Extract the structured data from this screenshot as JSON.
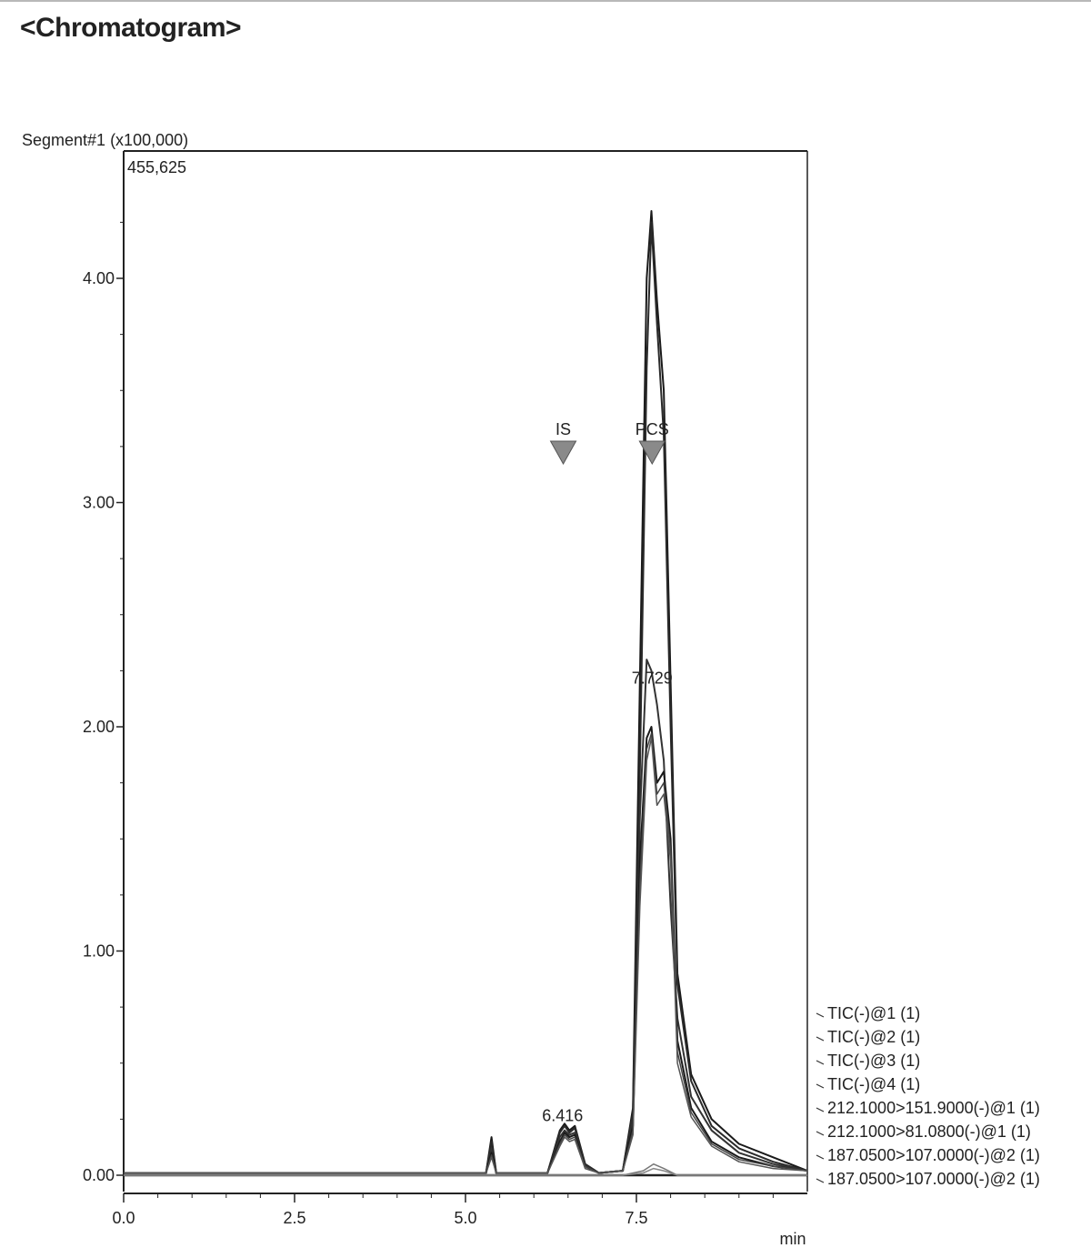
{
  "page_title": "<Chromatogram>",
  "chart_data": {
    "type": "line",
    "title": "<Chromatogram>",
    "y_axis_title": "Segment#1 (x100,000)",
    "y_max_label": "455,625",
    "xlabel": "min",
    "ylabel": "",
    "xlim": [
      0.0,
      10.0
    ],
    "ylim": [
      0.0,
      4.5
    ],
    "x_ticks": [
      {
        "value": 0.0,
        "label": "0.0"
      },
      {
        "value": 2.5,
        "label": "2.5"
      },
      {
        "value": 5.0,
        "label": "5.0"
      },
      {
        "value": 7.5,
        "label": "7.5"
      }
    ],
    "y_ticks": [
      {
        "value": 0.0,
        "label": "0.00"
      },
      {
        "value": 1.0,
        "label": "1.00"
      },
      {
        "value": 2.0,
        "label": "2.00"
      },
      {
        "value": 3.0,
        "label": "3.00"
      },
      {
        "value": 4.0,
        "label": "4.00"
      }
    ],
    "peak_markers": [
      {
        "label": "IS",
        "x": 6.43
      },
      {
        "label": "PCS",
        "x": 7.73
      }
    ],
    "peak_labels": [
      {
        "label": "6.416",
        "x": 6.42,
        "y": 0.25
      },
      {
        "label": "7.729",
        "x": 7.73,
        "y": 2.2
      }
    ],
    "legend_position": "right",
    "series": [
      {
        "name": "TIC(-)@1 (1)",
        "x": [
          0,
          4.8,
          5.3,
          5.38,
          5.45,
          6.2,
          6.38,
          6.45,
          6.52,
          6.6,
          6.75,
          6.95,
          7.3,
          7.45,
          7.55,
          7.65,
          7.72,
          7.8,
          7.9,
          8.0,
          8.1,
          8.3,
          8.6,
          9.0,
          9.5,
          10.0
        ],
        "y": [
          0.01,
          0.01,
          0.01,
          0.17,
          0.01,
          0.01,
          0.2,
          0.23,
          0.2,
          0.22,
          0.05,
          0.01,
          0.02,
          0.3,
          2.2,
          4.0,
          4.3,
          3.9,
          3.5,
          2.2,
          0.9,
          0.45,
          0.25,
          0.14,
          0.08,
          0.02
        ]
      },
      {
        "name": "TIC(-)@2 (1)",
        "x": [
          0,
          4.8,
          5.3,
          5.38,
          5.45,
          6.2,
          6.38,
          6.45,
          6.52,
          6.6,
          6.75,
          6.95,
          7.3,
          7.45,
          7.55,
          7.65,
          7.72,
          7.8,
          7.9,
          8.0,
          8.1,
          8.3,
          8.6,
          9.0,
          9.5,
          10.0
        ],
        "y": [
          0.01,
          0.01,
          0.01,
          0.15,
          0.01,
          0.01,
          0.19,
          0.22,
          0.19,
          0.21,
          0.05,
          0.01,
          0.02,
          0.28,
          1.8,
          3.6,
          4.25,
          3.8,
          3.3,
          2.0,
          0.85,
          0.42,
          0.22,
          0.12,
          0.06,
          0.02
        ]
      },
      {
        "name": "TIC(-)@3 (1)",
        "x": [
          0,
          4.8,
          5.3,
          5.38,
          5.45,
          6.2,
          6.38,
          6.45,
          6.52,
          6.6,
          6.75,
          6.95,
          7.3,
          7.45,
          7.55,
          7.65,
          7.72,
          7.8,
          7.9,
          8.0,
          8.1,
          8.3,
          8.6,
          9.0,
          9.5,
          10.0
        ],
        "y": [
          0.01,
          0.01,
          0.01,
          0.12,
          0.01,
          0.01,
          0.17,
          0.2,
          0.18,
          0.19,
          0.04,
          0.01,
          0.02,
          0.25,
          1.6,
          2.3,
          2.25,
          2.1,
          1.85,
          1.2,
          0.7,
          0.35,
          0.2,
          0.1,
          0.05,
          0.02
        ]
      },
      {
        "name": "TIC(-)@4 (1)",
        "x": [
          0,
          4.8,
          5.3,
          5.38,
          5.45,
          6.2,
          6.38,
          6.45,
          6.52,
          6.6,
          6.75,
          6.95,
          7.3,
          7.45,
          7.55,
          7.65,
          7.72,
          7.8,
          7.9,
          8.0,
          8.1,
          8.3,
          8.6,
          9.0,
          9.5,
          10.0
        ],
        "y": [
          0.01,
          0.01,
          0.01,
          0.1,
          0.01,
          0.01,
          0.15,
          0.19,
          0.17,
          0.18,
          0.04,
          0.01,
          0.02,
          0.22,
          1.4,
          1.95,
          2.0,
          1.75,
          1.8,
          1.5,
          0.6,
          0.3,
          0.15,
          0.08,
          0.04,
          0.02
        ]
      },
      {
        "name": "212.1000>151.9000(-)@1 (1)",
        "x": [
          0,
          4.8,
          5.3,
          5.38,
          5.45,
          6.2,
          6.38,
          6.45,
          6.52,
          6.6,
          6.75,
          6.95,
          7.3,
          7.45,
          7.55,
          7.65,
          7.72,
          7.8,
          7.9,
          8.0,
          8.1,
          8.3,
          8.6,
          9.0,
          9.5,
          10.0
        ],
        "y": [
          0.01,
          0.01,
          0.01,
          0.09,
          0.01,
          0.01,
          0.14,
          0.18,
          0.16,
          0.17,
          0.04,
          0.01,
          0.02,
          0.2,
          1.3,
          1.9,
          1.97,
          1.7,
          1.75,
          1.45,
          0.55,
          0.28,
          0.14,
          0.07,
          0.04,
          0.02
        ]
      },
      {
        "name": "212.1000>81.0800(-)@1 (1)",
        "x": [
          0,
          4.8,
          5.3,
          5.38,
          5.45,
          6.2,
          6.38,
          6.45,
          6.52,
          6.6,
          6.75,
          6.95,
          7.3,
          7.45,
          7.55,
          7.65,
          7.72,
          7.8,
          7.9,
          8.0,
          8.1,
          8.3,
          8.6,
          9.0,
          9.5,
          10.0
        ],
        "y": [
          0.01,
          0.01,
          0.01,
          0.08,
          0.01,
          0.01,
          0.13,
          0.17,
          0.15,
          0.16,
          0.03,
          0.01,
          0.02,
          0.18,
          1.2,
          1.85,
          1.95,
          1.65,
          1.7,
          1.4,
          0.5,
          0.26,
          0.13,
          0.06,
          0.03,
          0.02
        ]
      },
      {
        "name": "187.0500>107.0000(-)@2 (1)",
        "x": [
          0,
          7.3,
          7.6,
          7.75,
          7.9,
          8.1,
          10.0
        ],
        "y": [
          0.0,
          0.0,
          0.02,
          0.05,
          0.03,
          0.0,
          0.0
        ]
      },
      {
        "name": "187.0500>107.0000(-)@2 (1)",
        "x": [
          0,
          7.3,
          7.6,
          7.75,
          7.9,
          8.1,
          10.0
        ],
        "y": [
          0.0,
          0.0,
          0.01,
          0.03,
          0.02,
          0.0,
          0.0
        ]
      }
    ]
  }
}
